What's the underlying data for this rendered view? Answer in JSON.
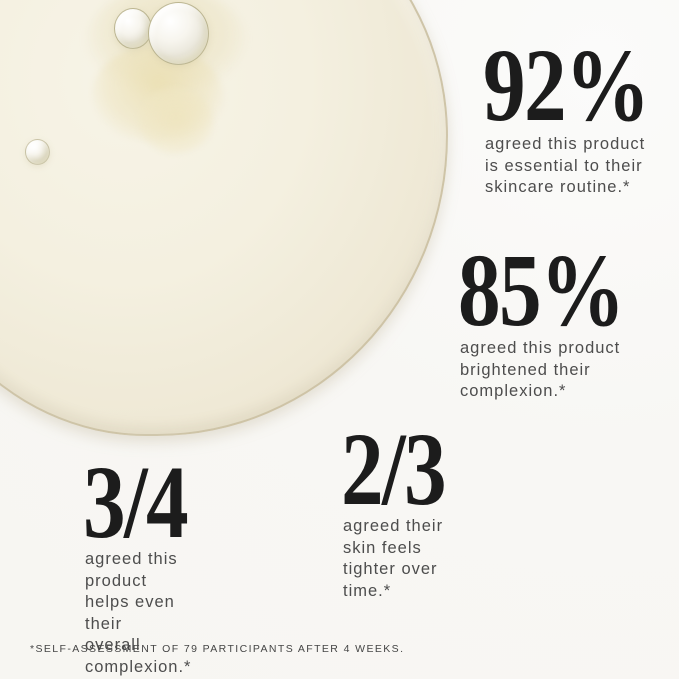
{
  "stats": [
    {
      "value": "92%",
      "description": "agreed this product\nis essential to their\nskincare routine.*"
    },
    {
      "value": "85%",
      "description": "agreed this product\nbrightened their\ncomplexion.*"
    },
    {
      "value": "2/3",
      "description": "agreed their skin feels\ntighter over time.*"
    },
    {
      "value": "3/4",
      "description": "agreed this product\nhelps even their\noverall complexion.*"
    }
  ],
  "footnote": "*SELF-ASSESSMENT OF 79 PARTICIPANTS AFTER 4 WEEKS.",
  "swatch": {
    "subject": "pale golden serum swatch with air bubbles",
    "colors": {
      "background": "#f8f7f4",
      "swatch_fill": "#f3efe0",
      "swatch_rim": "#c9bda0",
      "bubble_rim": "#968850"
    }
  },
  "text_colors": {
    "number": "#1c1c1c",
    "description": "#4d4d4d",
    "footnote": "#454545"
  }
}
